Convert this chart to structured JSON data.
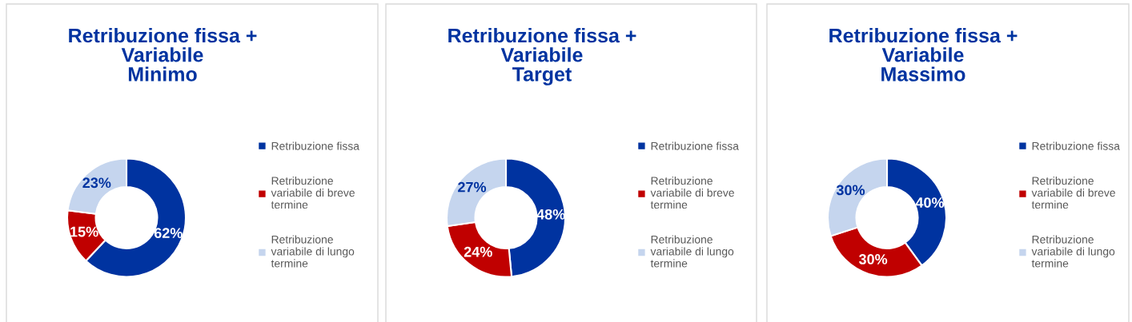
{
  "chart_data": [
    {
      "type": "donut",
      "title": "Retribuzione fissa +\nVariabile\nMinimo",
      "categories": [
        "Retribuzione fissa",
        "Retribuzione variabile di breve termine",
        "Retribuzione variabile di lungo termine"
      ],
      "values": [
        62,
        15,
        23
      ],
      "value_labels": [
        "62%",
        "15%",
        "23%"
      ],
      "colors": [
        "#0033a0",
        "#c00000",
        "#c5d5ee"
      ],
      "legend": "right"
    },
    {
      "type": "donut",
      "title": "Retribuzione fissa +\nVariabile\nTarget",
      "categories": [
        "Retribuzione fissa",
        "Retribuzione variabile di breve termine",
        "Retribuzione variabile di lungo termine"
      ],
      "values": [
        48,
        24,
        27
      ],
      "value_labels": [
        "48%",
        "24%",
        "27%"
      ],
      "colors": [
        "#0033a0",
        "#c00000",
        "#c5d5ee"
      ],
      "legend": "right"
    },
    {
      "type": "donut",
      "title": "Retribuzione fissa +\nVariabile\nMassimo",
      "categories": [
        "Retribuzione fissa",
        "Retribuzione variabile di breve termine",
        "Retribuzione variabile di lungo termine"
      ],
      "values": [
        40,
        30,
        30
      ],
      "value_labels": [
        "40%",
        "30%",
        "30%"
      ],
      "colors": [
        "#0033a0",
        "#c00000",
        "#c5d5ee"
      ],
      "legend": "right"
    }
  ]
}
